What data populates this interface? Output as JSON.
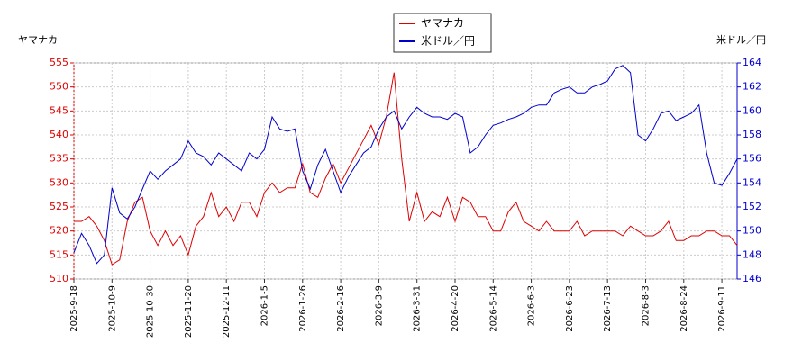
{
  "chart_data": {
    "type": "line",
    "y_label": "ヤマナカ",
    "y2_label": "米ドル／円",
    "categories": [
      "2025-9-18",
      null,
      null,
      null,
      null,
      "2025-10-9",
      null,
      null,
      null,
      null,
      "2025-10-30",
      null,
      null,
      null,
      null,
      "2025-11-20",
      null,
      null,
      null,
      null,
      "2025-12-11",
      null,
      null,
      null,
      null,
      "2026-1-5",
      null,
      null,
      null,
      null,
      "2026-1-26",
      null,
      null,
      null,
      null,
      "2026-2-16",
      null,
      null,
      null,
      null,
      "2026-3-9",
      null,
      null,
      null,
      null,
      "2026-3-31",
      null,
      null,
      null,
      null,
      "2026-4-20",
      null,
      null,
      null,
      null,
      "2026-5-14",
      null,
      null,
      null,
      null,
      "2026-6-3",
      null,
      null,
      null,
      null,
      "2026-6-23",
      null,
      null,
      null,
      null,
      "2026-7-13",
      null,
      null,
      null,
      null,
      "2026-8-3",
      null,
      null,
      null,
      null,
      "2026-8-24",
      null,
      null,
      null,
      null,
      "2026-9-11",
      null,
      null
    ],
    "series": [
      {
        "name": "ヤマナカ",
        "color": "#dd0000",
        "axis": "y",
        "values": [
          522,
          522,
          523,
          521,
          518,
          513,
          514,
          522,
          526,
          527,
          520,
          517,
          520,
          517,
          519,
          515,
          521,
          523,
          528,
          523,
          525,
          522,
          526,
          526,
          523,
          528,
          530,
          528,
          529,
          529,
          534,
          528,
          527,
          531,
          534,
          530,
          533,
          536,
          539,
          542,
          538,
          544,
          553,
          535,
          522,
          528,
          522,
          524,
          523,
          527,
          522,
          527,
          526,
          523,
          523,
          520,
          520,
          524,
          526,
          522,
          521,
          520,
          522,
          520,
          520,
          520,
          522,
          519,
          520,
          520,
          520,
          520,
          519,
          521,
          520,
          519,
          519,
          520,
          522,
          518,
          518,
          519,
          519,
          520,
          520,
          519,
          519,
          517
        ]
      },
      {
        "name": "米ドル／円",
        "color": "#0000cc",
        "axis": "y2",
        "values": [
          148.2,
          149.8,
          148.8,
          147.3,
          148,
          153.6,
          151.5,
          151,
          152,
          153.5,
          155,
          154.3,
          155,
          155.5,
          156,
          157.5,
          156.5,
          156.2,
          155.5,
          156.5,
          156,
          155.5,
          155,
          156.5,
          156,
          156.8,
          159.5,
          158.5,
          158.3,
          158.5,
          155,
          153.5,
          155.5,
          156.8,
          155,
          153.2,
          154.5,
          155.5,
          156.5,
          157,
          158.5,
          159.5,
          160,
          158.5,
          159.5,
          160.3,
          159.8,
          159.5,
          159.5,
          159.3,
          159.8,
          159.5,
          156.5,
          157,
          158,
          158.8,
          159,
          159.3,
          159.5,
          159.8,
          160.3,
          160.5,
          160.5,
          161.5,
          161.8,
          162,
          161.5,
          161.5,
          162,
          162.2,
          162.5,
          163.5,
          163.8,
          163.2,
          158,
          157.5,
          158.5,
          159.8,
          160,
          159.2,
          159.5,
          159.8,
          160.5,
          156.5,
          154,
          153.8,
          154.8,
          156
        ]
      }
    ],
    "ylim": [
      510,
      555
    ],
    "yticks": [
      510,
      515,
      520,
      525,
      530,
      535,
      540,
      545,
      550,
      555
    ],
    "y2lim": [
      146,
      164
    ],
    "y2ticks": [
      146,
      148,
      150,
      152,
      154,
      156,
      158,
      160,
      162,
      164
    ],
    "grid": true,
    "legend": "top"
  }
}
